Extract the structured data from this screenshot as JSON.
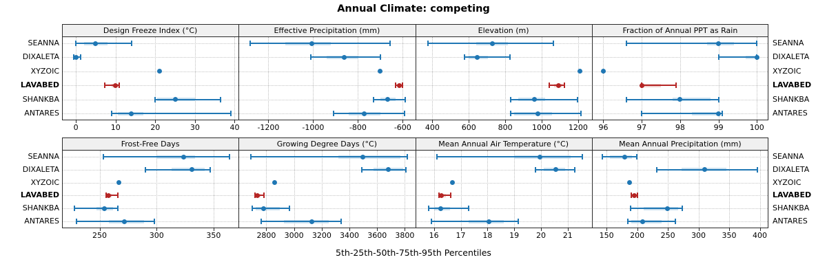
{
  "title": "Annual Climate: competing",
  "footer": "5th-25th-50th-75th-95th Percentiles",
  "sites": [
    "SEANNA",
    "DIXALETA",
    "XYZOIC",
    "LAVABED",
    "SHANKBA",
    "ANTARES"
  ],
  "highlight_site": "LAVABED",
  "percentile_labels": [
    "5th",
    "25th",
    "50th",
    "75th",
    "95th"
  ],
  "colors": {
    "series_blue": "#1f77b4",
    "series_blue_light": "#a6cbe3",
    "highlight_red": "#b52524",
    "highlight_red_light": "#e4b0ac",
    "frame": "#2a2a2a",
    "header_bg": "#f0f0f0",
    "grid": "#bdbdbd"
  },
  "chart_data": [
    {
      "type": "dotplot-percentiles",
      "row": 0,
      "col": 0,
      "title": "Design Freeze Index (°C)",
      "xlim": [
        -3.5,
        41
      ],
      "ticks": [
        0,
        10,
        20,
        30,
        40
      ],
      "series": [
        {
          "name": "SEANNA",
          "values": [
            0,
            2,
            5,
            8,
            14
          ]
        },
        {
          "name": "DIXALETA",
          "values": [
            -0.5,
            -0.2,
            0,
            0.3,
            1.2
          ]
        },
        {
          "name": "XYZOIC",
          "values": [
            21,
            21,
            21,
            21,
            21
          ]
        },
        {
          "name": "LAVABED",
          "values": [
            7.2,
            9,
            10,
            10.7,
            11
          ]
        },
        {
          "name": "SHANKBA",
          "values": [
            20,
            20.5,
            25,
            30,
            36.5
          ]
        },
        {
          "name": "ANTARES",
          "values": [
            9,
            10.5,
            14,
            17,
            39
          ]
        }
      ]
    },
    {
      "type": "dotplot-percentiles",
      "row": 0,
      "col": 1,
      "title": "Effective Precipitation (mm)",
      "xlim": [
        -1333,
        -544
      ],
      "ticks": [
        -1200,
        -1000,
        -800,
        -600
      ],
      "series": [
        {
          "name": "SEANNA",
          "values": [
            -1280,
            -1125,
            -1005,
            -920,
            -655
          ]
        },
        {
          "name": "DIXALETA",
          "values": [
            -1010,
            -940,
            -862,
            -798,
            -700
          ]
        },
        {
          "name": "XYZOIC",
          "values": [
            -700,
            -700,
            -700,
            -700,
            -700
          ]
        },
        {
          "name": "LAVABED",
          "values": [
            -632,
            -624,
            -614,
            -606,
            -600
          ]
        },
        {
          "name": "SHANKBA",
          "values": [
            -730,
            -700,
            -668,
            -632,
            -590
          ]
        },
        {
          "name": "ANTARES",
          "values": [
            -910,
            -840,
            -772,
            -700,
            -592
          ]
        }
      ]
    },
    {
      "type": "dotplot-percentiles",
      "row": 0,
      "col": 2,
      "title": "Elevation (m)",
      "xlim": [
        306,
        1275
      ],
      "ticks": [
        400,
        600,
        800,
        1000,
        1200
      ],
      "series": [
        {
          "name": "SEANNA",
          "values": [
            375,
            640,
            730,
            815,
            1065
          ]
        },
        {
          "name": "DIXALETA",
          "values": [
            578,
            600,
            646,
            706,
            825
          ]
        },
        {
          "name": "XYZOIC",
          "values": [
            1210,
            1210,
            1210,
            1210,
            1210
          ]
        },
        {
          "name": "LAVABED",
          "values": [
            1040,
            1068,
            1094,
            1112,
            1126
          ]
        },
        {
          "name": "SHANKBA",
          "values": [
            830,
            872,
            962,
            1020,
            1198
          ]
        },
        {
          "name": "ANTARES",
          "values": [
            830,
            848,
            978,
            1056,
            1215
          ]
        }
      ]
    },
    {
      "type": "dotplot-percentiles",
      "row": 0,
      "col": 3,
      "title": "Fraction of Annual PPT as Rain",
      "xlim": [
        95.7,
        100.3
      ],
      "ticks": [
        96,
        97,
        98,
        99,
        100
      ],
      "series": [
        {
          "name": "SEANNA",
          "values": [
            96.6,
            98.7,
            99.0,
            99.4,
            100.0
          ]
        },
        {
          "name": "DIXALETA",
          "values": [
            99.0,
            99.7,
            100.0,
            100.0,
            100.0
          ]
        },
        {
          "name": "XYZOIC",
          "values": [
            96.0,
            96.0,
            96.0,
            96.0,
            96.0
          ]
        },
        {
          "name": "LAVABED",
          "values": [
            97.0,
            97.0,
            97.0,
            97.5,
            97.9
          ]
        },
        {
          "name": "SHANKBA",
          "values": [
            96.6,
            97.8,
            98.0,
            98.8,
            99.0
          ]
        },
        {
          "name": "ANTARES",
          "values": [
            97.0,
            98.3,
            99.0,
            99.05,
            99.1
          ]
        }
      ]
    },
    {
      "type": "dotplot-percentiles",
      "row": 1,
      "col": 0,
      "title": "Frost-Free Days",
      "xlim": [
        217,
        372
      ],
      "ticks": [
        250,
        300,
        350
      ],
      "series": [
        {
          "name": "SEANNA",
          "values": [
            253,
            300,
            324,
            334,
            364
          ]
        },
        {
          "name": "DIXALETA",
          "values": [
            290,
            313,
            331,
            342,
            347
          ]
        },
        {
          "name": "XYZOIC",
          "values": [
            267,
            267,
            267,
            267,
            267
          ]
        },
        {
          "name": "LAVABED",
          "values": [
            256,
            257,
            258,
            260.5,
            266
          ]
        },
        {
          "name": "SHANKBA",
          "values": [
            228,
            247,
            254,
            262,
            266
          ]
        },
        {
          "name": "ANTARES",
          "values": [
            230,
            258,
            272,
            289,
            298
          ]
        }
      ]
    },
    {
      "type": "dotplot-percentiles",
      "row": 1,
      "col": 1,
      "title": "Growing Degree Days (°C)",
      "xlim": [
        2600,
        3875
      ],
      "ticks": [
        2800,
        3000,
        3200,
        3400,
        3600,
        3800
      ],
      "series": [
        {
          "name": "SEANNA",
          "values": [
            2690,
            3320,
            3495,
            3770,
            3820
          ]
        },
        {
          "name": "DIXALETA",
          "values": [
            3490,
            3575,
            3680,
            3788,
            3808
          ]
        },
        {
          "name": "XYZOIC",
          "values": [
            2858,
            2858,
            2858,
            2858,
            2858
          ]
        },
        {
          "name": "LAVABED",
          "values": [
            2718,
            2728,
            2738,
            2758,
            2785
          ]
        },
        {
          "name": "SHANKBA",
          "values": [
            2700,
            2722,
            2778,
            2898,
            2968
          ]
        },
        {
          "name": "ANTARES",
          "values": [
            2765,
            2925,
            3130,
            3250,
            3340
          ]
        }
      ]
    },
    {
      "type": "dotplot-percentiles",
      "row": 1,
      "col": 2,
      "title": "Mean Annual Air Temperature (°C)",
      "xlim": [
        15.3,
        21.9
      ],
      "ticks": [
        16,
        17,
        18,
        19,
        20,
        21
      ],
      "series": [
        {
          "name": "SEANNA",
          "values": [
            16.1,
            19.0,
            19.95,
            21.1,
            21.55
          ]
        },
        {
          "name": "DIXALETA",
          "values": [
            19.8,
            20.1,
            20.55,
            20.9,
            21.25
          ]
        },
        {
          "name": "XYZOIC",
          "values": [
            16.7,
            16.7,
            16.7,
            16.7,
            16.7
          ]
        },
        {
          "name": "LAVABED",
          "values": [
            16.2,
            16.22,
            16.28,
            16.45,
            16.62
          ]
        },
        {
          "name": "SHANKBA",
          "values": [
            15.8,
            16.0,
            16.25,
            16.6,
            17.3
          ]
        },
        {
          "name": "ANTARES",
          "values": [
            15.9,
            17.3,
            18.05,
            18.6,
            19.15
          ]
        }
      ]
    },
    {
      "type": "dotplot-percentiles",
      "row": 1,
      "col": 3,
      "title": "Mean Annual Precipitation (mm)",
      "xlim": [
        126,
        414
      ],
      "ticks": [
        150,
        200,
        250,
        300,
        350,
        400
      ],
      "series": [
        {
          "name": "SEANNA",
          "values": [
            143,
            155,
            180,
            192,
            199
          ]
        },
        {
          "name": "DIXALETA",
          "values": [
            232,
            272,
            310,
            345,
            396
          ]
        },
        {
          "name": "XYZOIC",
          "values": [
            188,
            188,
            188,
            188,
            188
          ]
        },
        {
          "name": "LAVABED",
          "values": [
            190,
            192,
            195,
            198,
            201
          ]
        },
        {
          "name": "SHANKBA",
          "values": [
            189,
            211,
            249,
            267,
            273
          ]
        },
        {
          "name": "ANTARES",
          "values": [
            185,
            190,
            209,
            240,
            262
          ]
        }
      ]
    }
  ]
}
